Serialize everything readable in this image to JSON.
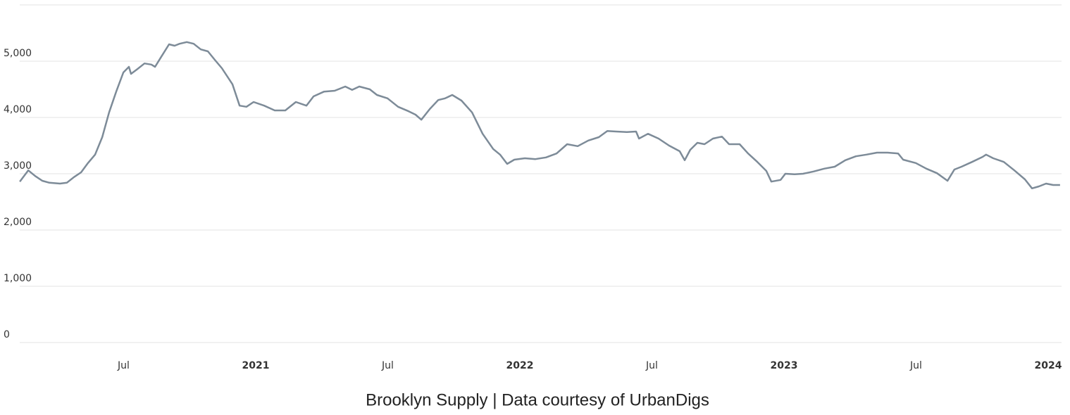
{
  "chart_data": {
    "type": "line",
    "title": "Brooklyn Supply | Data courtesy of UrbanDigs",
    "x": [
      2020.107,
      2020.139,
      2020.165,
      2020.192,
      2020.219,
      2020.259,
      2020.285,
      2020.312,
      2020.339,
      2020.365,
      2020.392,
      2020.419,
      2020.445,
      2020.472,
      2020.499,
      2020.52,
      2020.528,
      2020.552,
      2020.579,
      2020.605,
      2020.619,
      2020.64,
      2020.672,
      2020.693,
      2020.712,
      2020.739,
      2020.765,
      2020.792,
      2020.819,
      2020.845,
      2020.872,
      2020.912,
      2020.939,
      2020.965,
      2020.992,
      2021.032,
      2021.072,
      2021.112,
      2021.152,
      2021.192,
      2021.219,
      2021.259,
      2021.299,
      2021.339,
      2021.365,
      2021.392,
      2021.432,
      2021.459,
      2021.499,
      2021.539,
      2021.579,
      2021.605,
      2021.627,
      2021.659,
      2021.691,
      2021.717,
      2021.744,
      2021.779,
      2021.819,
      2021.859,
      2021.899,
      2021.925,
      2021.952,
      2021.979,
      2022.019,
      2022.059,
      2022.099,
      2022.139,
      2022.179,
      2022.219,
      2022.259,
      2022.299,
      2022.331,
      2022.365,
      2022.405,
      2022.44,
      2022.451,
      2022.485,
      2022.525,
      2022.565,
      2022.605,
      2022.624,
      2022.645,
      2022.672,
      2022.699,
      2022.731,
      2022.765,
      2022.792,
      2022.832,
      2022.864,
      2022.899,
      2022.933,
      2022.952,
      2022.987,
      2023.005,
      2023.04,
      2023.072,
      2023.112,
      2023.152,
      2023.192,
      2023.232,
      2023.272,
      2023.312,
      2023.352,
      2023.392,
      2023.432,
      2023.451,
      2023.499,
      2023.539,
      2023.579,
      2023.619,
      2023.645,
      2023.672,
      2023.712,
      2023.752,
      2023.765,
      2023.792,
      2023.832,
      2023.872,
      2023.912,
      2023.939,
      2023.965,
      2023.992,
      2024.019,
      2024.045
    ],
    "series": [
      {
        "color": "#7d8b98",
        "values": [
          2860,
          3060,
          2960,
          2875,
          2840,
          2825,
          2840,
          2940,
          3025,
          3190,
          3340,
          3650,
          4090,
          4460,
          4800,
          4900,
          4775,
          4860,
          4960,
          4940,
          4900,
          5060,
          5300,
          5275,
          5310,
          5340,
          5310,
          5210,
          5175,
          5025,
          4875,
          4590,
          4210,
          4190,
          4275,
          4210,
          4125,
          4125,
          4275,
          4210,
          4375,
          4460,
          4475,
          4550,
          4490,
          4550,
          4500,
          4400,
          4340,
          4190,
          4110,
          4050,
          3960,
          4150,
          4310,
          4340,
          4400,
          4300,
          4090,
          3710,
          3440,
          3340,
          3175,
          3250,
          3275,
          3260,
          3290,
          3360,
          3525,
          3490,
          3590,
          3650,
          3760,
          3750,
          3740,
          3750,
          3625,
          3710,
          3625,
          3500,
          3400,
          3240,
          3425,
          3550,
          3525,
          3625,
          3660,
          3525,
          3525,
          3360,
          3210,
          3050,
          2860,
          2890,
          3000,
          2990,
          3000,
          3040,
          3090,
          3125,
          3240,
          3310,
          3340,
          3375,
          3375,
          3360,
          3250,
          3190,
          3090,
          3010,
          2875,
          3075,
          3125,
          3210,
          3300,
          3340,
          3275,
          3210,
          3060,
          2900,
          2740,
          2775,
          2825,
          2800,
          2800
        ]
      }
    ],
    "xlim": [
      2020.1,
      2024.05
    ],
    "xticks": [
      {
        "value": 2020.5,
        "label": "Jul"
      },
      2021,
      {
        "value": 2021.5,
        "label": "Jul"
      },
      2022,
      {
        "value": 2022.5,
        "label": "Jul"
      },
      2023,
      {
        "value": 2023.5,
        "label": "Jul"
      },
      2024
    ],
    "ylim": [
      0,
      6000
    ],
    "yticks": [
      0,
      {
        "value": 1000,
        "label": "1,000"
      },
      {
        "value": 2000,
        "label": "2,000"
      },
      {
        "value": 3000,
        "label": "3,000"
      },
      {
        "value": 4000,
        "label": "4,000"
      },
      {
        "value": 5000,
        "label": "5,000"
      }
    ],
    "grid": true
  }
}
